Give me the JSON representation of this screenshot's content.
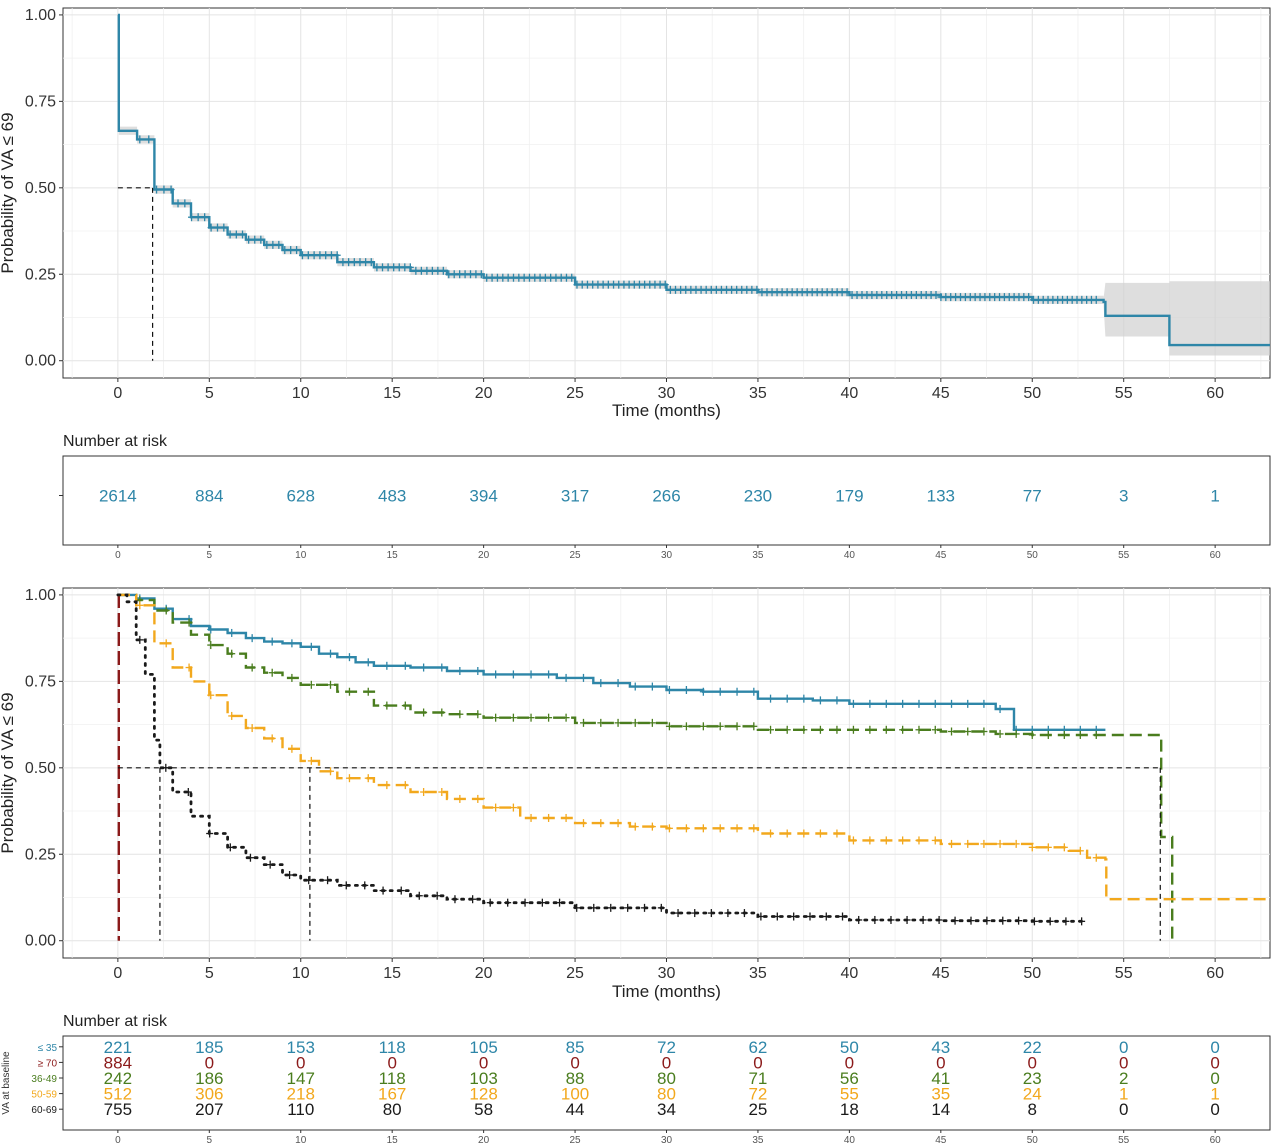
{
  "chart_data": [
    {
      "type": "line",
      "subtype": "kaplan-meier",
      "title": "",
      "xlabel": "Time (months)",
      "ylabel": "Probability of VA ≤ 69",
      "xlim": [
        -3,
        63
      ],
      "ylim": [
        -0.05,
        1.02
      ],
      "x_ticks": [
        0,
        5,
        10,
        15,
        20,
        25,
        30,
        35,
        40,
        45,
        50,
        55,
        60
      ],
      "y_ticks": [
        "0.00",
        "0.25",
        "0.50",
        "0.75",
        "1.00"
      ],
      "grid": true,
      "median_time": 1.9,
      "colors": {
        "main": "#2e86a8",
        "ci": "#d0d0d0"
      },
      "series": [
        {
          "name": "",
          "x": [
            0,
            0.05,
            1,
            1.05,
            2,
            3,
            4,
            5,
            6,
            7,
            8,
            9,
            10,
            12,
            14,
            16,
            18,
            20,
            25,
            30,
            35,
            40,
            45,
            50,
            53.9,
            54,
            57,
            57.5,
            63
          ],
          "y": [
            1.0,
            0.665,
            0.665,
            0.64,
            0.495,
            0.455,
            0.415,
            0.385,
            0.365,
            0.35,
            0.335,
            0.32,
            0.305,
            0.285,
            0.27,
            0.26,
            0.25,
            0.24,
            0.22,
            0.205,
            0.198,
            0.19,
            0.184,
            0.176,
            0.17,
            0.13,
            0.13,
            0.045,
            0.045
          ],
          "ci_upper_tail": [
            [
              54,
              0.225
            ],
            [
              57.5,
              0.225
            ],
            [
              57.5,
              0.23
            ],
            [
              63,
              0.23
            ]
          ],
          "ci_lower_tail": [
            [
              54,
              0.07
            ],
            [
              57.5,
              0.07
            ],
            [
              57.5,
              0.015
            ],
            [
              63,
              0.015
            ]
          ]
        }
      ],
      "risk_table": {
        "title": "Number at risk",
        "times": [
          0,
          5,
          10,
          15,
          20,
          25,
          30,
          35,
          40,
          45,
          50,
          55,
          60
        ],
        "rows": [
          {
            "values": [
              "2614",
              "884",
              "628",
              "483",
              "394",
              "317",
              "266",
              "230",
              "179",
              "133",
              "77",
              "3",
              "1"
            ],
            "color": "#2e86a8"
          }
        ]
      }
    },
    {
      "type": "line",
      "subtype": "kaplan-meier",
      "title": "",
      "xlabel": "Time (months)",
      "ylabel": "Probability of VA ≤ 69",
      "xlim": [
        -3,
        63
      ],
      "ylim": [
        -0.05,
        1.02
      ],
      "x_ticks": [
        0,
        5,
        10,
        15,
        20,
        25,
        30,
        35,
        40,
        45,
        50,
        55,
        60
      ],
      "y_ticks": [
        "0.00",
        "0.25",
        "0.50",
        "0.75",
        "1.00"
      ],
      "grid": true,
      "median_times": [
        0.05,
        2.3,
        10.5,
        57.0
      ],
      "series": [
        {
          "name": "≤ 35",
          "color": "#2e86a8",
          "dash": "solid",
          "x": [
            0,
            1,
            2,
            3,
            4,
            5,
            6,
            7,
            8,
            9,
            10,
            11,
            12,
            13,
            14,
            16,
            18,
            20,
            24,
            26,
            28,
            30,
            32,
            35,
            38,
            40,
            45,
            48,
            49,
            54
          ],
          "y": [
            1.0,
            0.99,
            0.96,
            0.93,
            0.91,
            0.9,
            0.89,
            0.875,
            0.865,
            0.86,
            0.85,
            0.83,
            0.82,
            0.805,
            0.795,
            0.79,
            0.78,
            0.77,
            0.76,
            0.745,
            0.735,
            0.725,
            0.72,
            0.7,
            0.695,
            0.685,
            0.685,
            0.67,
            0.61,
            0.61
          ]
        },
        {
          "name": "≥ 70",
          "color": "#8b1a1a",
          "dash": "long-dash",
          "x": [
            0,
            0.05,
            0.05
          ],
          "y": [
            1.0,
            1.0,
            0.0
          ]
        },
        {
          "name": "36-49",
          "color": "#4a7d1e",
          "dash": "dashed",
          "x": [
            0,
            1,
            2,
            3,
            4,
            5,
            6,
            7,
            8,
            9,
            10,
            12,
            14,
            16,
            18,
            20,
            25,
            30,
            35,
            40,
            45,
            48,
            50,
            57.0,
            57.05,
            57.6,
            57.65
          ],
          "y": [
            1.0,
            0.985,
            0.955,
            0.92,
            0.885,
            0.855,
            0.83,
            0.79,
            0.775,
            0.76,
            0.74,
            0.72,
            0.68,
            0.66,
            0.655,
            0.645,
            0.63,
            0.62,
            0.61,
            0.61,
            0.605,
            0.598,
            0.595,
            0.595,
            0.3,
            0.3,
            0.0
          ]
        },
        {
          "name": "50-59",
          "color": "#f2a81d",
          "dash": "dashed",
          "x": [
            0,
            1,
            2,
            3,
            4,
            5,
            6,
            7,
            8,
            9,
            10,
            11,
            12,
            14,
            16,
            18,
            20,
            22,
            25,
            28,
            30,
            35,
            40,
            45,
            50,
            52,
            53,
            54,
            54.05,
            63
          ],
          "y": [
            1.0,
            0.97,
            0.86,
            0.79,
            0.75,
            0.71,
            0.65,
            0.615,
            0.585,
            0.555,
            0.52,
            0.49,
            0.47,
            0.45,
            0.43,
            0.41,
            0.385,
            0.355,
            0.34,
            0.33,
            0.325,
            0.31,
            0.29,
            0.28,
            0.27,
            0.26,
            0.24,
            0.235,
            0.12,
            0.12
          ]
        },
        {
          "name": "60-69",
          "color": "#1a1a1a",
          "dash": "dotted",
          "x": [
            0,
            0.5,
            1,
            1.5,
            2,
            2.3,
            3,
            4,
            5,
            6,
            7,
            8,
            9,
            10,
            12,
            14,
            16,
            18,
            20,
            25,
            30,
            35,
            40,
            45,
            50,
            53
          ],
          "y": [
            1.0,
            0.98,
            0.87,
            0.77,
            0.58,
            0.5,
            0.43,
            0.36,
            0.31,
            0.27,
            0.24,
            0.22,
            0.19,
            0.175,
            0.16,
            0.145,
            0.13,
            0.12,
            0.11,
            0.095,
            0.08,
            0.07,
            0.06,
            0.058,
            0.056,
            0.055
          ]
        }
      ],
      "risk_table": {
        "title": "Number at risk",
        "ylabel": "VA at baseline",
        "times": [
          0,
          5,
          10,
          15,
          20,
          25,
          30,
          35,
          40,
          45,
          50,
          55,
          60
        ],
        "rows": [
          {
            "label": "≤ 35",
            "color": "#2e86a8",
            "values": [
              "221",
              "185",
              "153",
              "118",
              "105",
              "85",
              "72",
              "62",
              "50",
              "43",
              "22",
              "0",
              "0"
            ]
          },
          {
            "label": "≥ 70",
            "color": "#8b1a1a",
            "values": [
              "884",
              "0",
              "0",
              "0",
              "0",
              "0",
              "0",
              "0",
              "0",
              "0",
              "0",
              "0",
              "0"
            ]
          },
          {
            "label": "36-49",
            "color": "#4a7d1e",
            "values": [
              "242",
              "186",
              "147",
              "118",
              "103",
              "88",
              "80",
              "71",
              "56",
              "41",
              "23",
              "2",
              "0"
            ]
          },
          {
            "label": "50-59",
            "color": "#f2a81d",
            "values": [
              "512",
              "306",
              "218",
              "167",
              "128",
              "100",
              "80",
              "72",
              "55",
              "35",
              "24",
              "1",
              "1"
            ]
          },
          {
            "label": "60-69",
            "color": "#1a1a1a",
            "values": [
              "755",
              "207",
              "110",
              "80",
              "58",
              "44",
              "34",
              "25",
              "18",
              "14",
              "8",
              "0",
              "0"
            ]
          }
        ]
      }
    }
  ]
}
